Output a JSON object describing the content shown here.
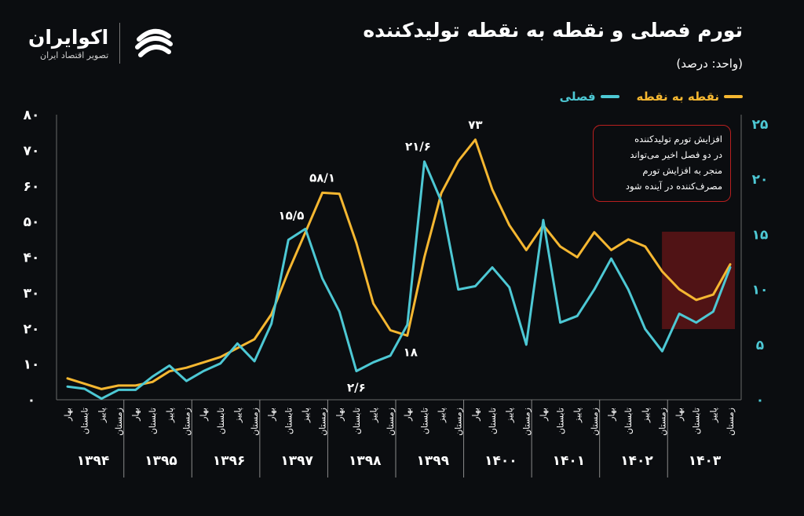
{
  "header": {
    "title": "تورم فصلی و نقطه به نقطه تولیدکننده",
    "unit": "(واحد: درصد)"
  },
  "legend": {
    "point_to_point": "نقطه به نقطه",
    "seasonal": "فصلی"
  },
  "logo": {
    "name": "اکوایران",
    "subtitle": "تصویر اقتصاد ایران"
  },
  "annotation": {
    "line1": "افزایش تورم تولیدکننده",
    "line2": "در دو فصل اخیر می‌تواند",
    "line3": "منجر به افزایش تورم",
    "line4": "مصرف‌کننده در آینده شود"
  },
  "colors": {
    "point_to_point": "#f5b731",
    "seasonal": "#4dc8d4",
    "highlight": "#8b1a1a",
    "annotation_border": "#b81f1f"
  },
  "chart_data": {
    "type": "line",
    "years": [
      "۱۳۹۴",
      "۱۳۹۵",
      "۱۳۹۶",
      "۱۳۹۷",
      "۱۳۹۸",
      "۱۳۹۹",
      "۱۴۰۰",
      "۱۴۰۱",
      "۱۴۰۲",
      "۱۴۰۳"
    ],
    "seasons": [
      "بهار",
      "تابستان",
      "پاییز",
      "زمستان"
    ],
    "left_axis": {
      "ticks": [
        "۰",
        "۱۰",
        "۲۰",
        "۳۰",
        "۴۰",
        "۵۰",
        "۶۰",
        "۷۰",
        "۸۰"
      ],
      "range": [
        0,
        80
      ]
    },
    "right_axis": {
      "ticks": [
        "۰",
        "۵",
        "۱۰",
        "۱۵",
        "۲۰",
        "۲۵"
      ],
      "range": [
        0,
        25
      ]
    },
    "series": [
      {
        "name": "نقطه به نقطه",
        "axis": "left",
        "values": [
          6,
          4.5,
          3,
          4,
          4,
          5,
          8,
          9,
          10.5,
          12,
          14.5,
          17,
          24,
          36,
          47,
          58.1,
          57.8,
          44,
          27,
          19.5,
          18,
          40,
          58,
          67,
          73,
          59,
          49,
          42,
          49,
          43,
          40,
          47,
          42,
          45,
          43,
          36,
          31,
          28,
          29.5,
          38
        ]
      },
      {
        "name": "فصلی",
        "axis": "right",
        "values": [
          1.2,
          1,
          0.1,
          0.9,
          0.9,
          2.1,
          3.1,
          1.7,
          2.6,
          3.3,
          5.1,
          3.5,
          6.9,
          14.5,
          15.5,
          11,
          8,
          2.6,
          3.4,
          4,
          6.8,
          21.6,
          18,
          10,
          10.3,
          12,
          10.2,
          5,
          16.3,
          7,
          7.6,
          10,
          12.8,
          10,
          6.4,
          4.4,
          7.8,
          7,
          8,
          12
        ]
      }
    ],
    "annotations": [
      {
        "label": "۱۵/۵",
        "series": "فصلی",
        "index": 14
      },
      {
        "label": "۵۸/۱",
        "series": "نقطه به نقطه",
        "index": 15
      },
      {
        "label": "۲/۶",
        "series": "فصلی",
        "index": 17
      },
      {
        "label": "۱۸",
        "series": "نقطه به نقطه",
        "index": 20
      },
      {
        "label": "۲۱/۶",
        "series": "فصلی",
        "index": 21
      },
      {
        "label": "۷۳",
        "series": "نقطه به نقطه",
        "index": 24
      }
    ],
    "highlight_range": [
      36,
      39
    ]
  }
}
